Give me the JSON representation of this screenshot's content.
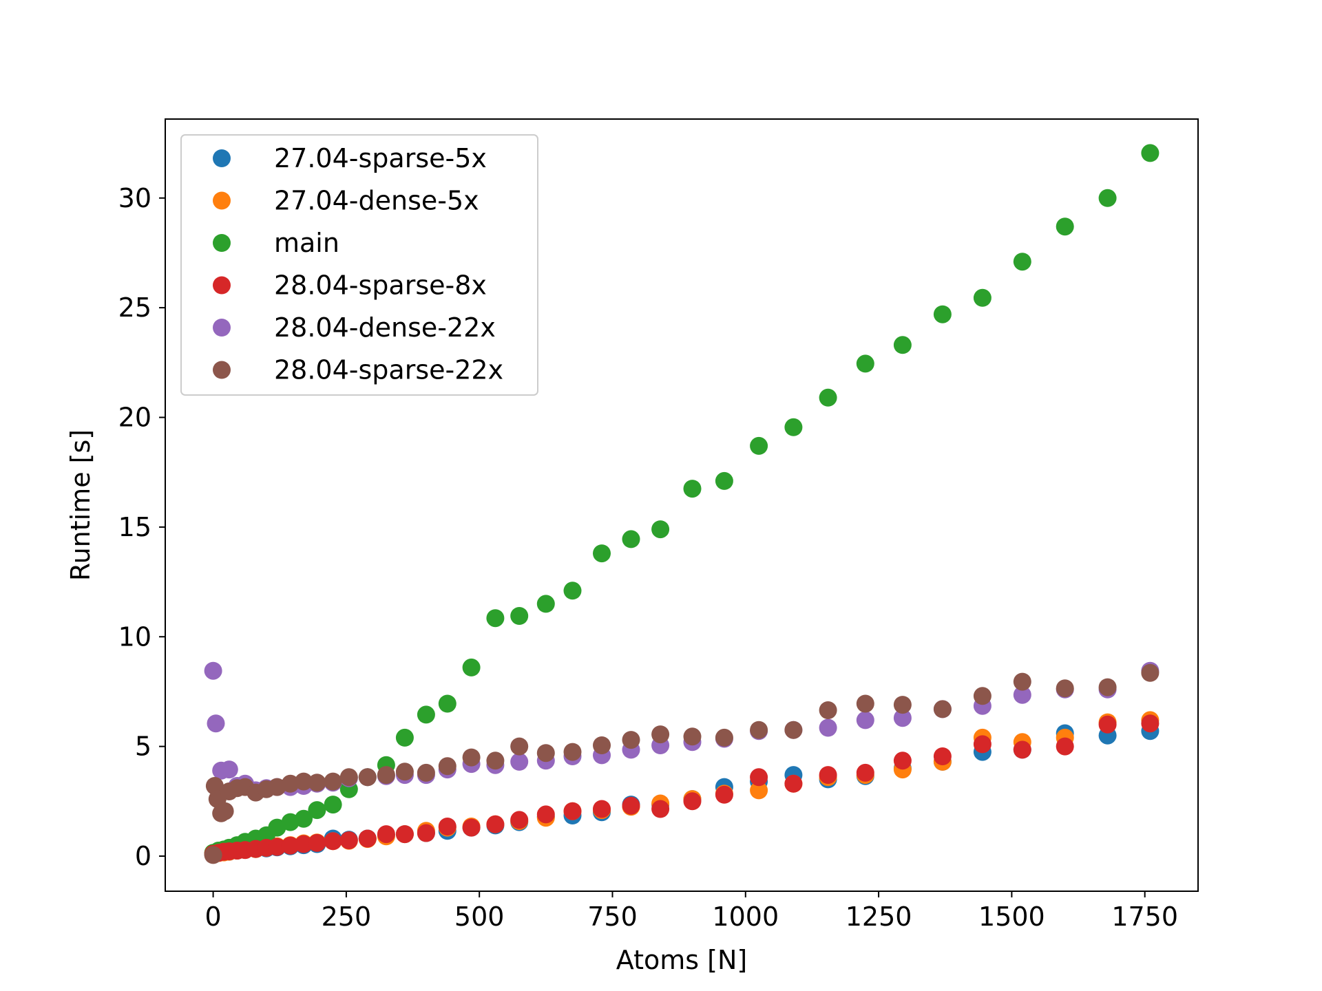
{
  "chart_data": {
    "type": "scatter",
    "xlabel": "Atoms [N]",
    "ylabel": "Runtime [s]",
    "xlim": [
      -90,
      1850
    ],
    "ylim": [
      -1.6,
      33.6
    ],
    "xticks": [
      0,
      250,
      500,
      750,
      1000,
      1250,
      1500,
      1750
    ],
    "yticks": [
      0,
      5,
      10,
      15,
      20,
      25,
      30
    ],
    "grid": false,
    "legend_position": "upper-left",
    "series": [
      {
        "name": "27.04-sparse-5x",
        "color": "#1f77b4",
        "points": [
          [
            0,
            0.1
          ],
          [
            10,
            0.15
          ],
          [
            20,
            0.18
          ],
          [
            30,
            0.2
          ],
          [
            45,
            0.25
          ],
          [
            60,
            0.28
          ],
          [
            80,
            0.32
          ],
          [
            100,
            0.35
          ],
          [
            120,
            0.4
          ],
          [
            145,
            0.45
          ],
          [
            170,
            0.5
          ],
          [
            195,
            0.55
          ],
          [
            225,
            0.8
          ],
          [
            255,
            0.75
          ],
          [
            290,
            0.8
          ],
          [
            325,
            0.95
          ],
          [
            360,
            1.0
          ],
          [
            400,
            1.05
          ],
          [
            440,
            1.15
          ],
          [
            485,
            1.3
          ],
          [
            530,
            1.4
          ],
          [
            575,
            1.55
          ],
          [
            625,
            1.8
          ],
          [
            675,
            1.85
          ],
          [
            730,
            2.0
          ],
          [
            785,
            2.35
          ],
          [
            840,
            2.35
          ],
          [
            900,
            2.6
          ],
          [
            960,
            3.15
          ],
          [
            1025,
            3.4
          ],
          [
            1090,
            3.7
          ],
          [
            1155,
            3.5
          ],
          [
            1225,
            3.65
          ],
          [
            1295,
            4.0
          ],
          [
            1370,
            4.3
          ],
          [
            1445,
            4.75
          ],
          [
            1520,
            4.85
          ],
          [
            1600,
            5.6
          ],
          [
            1680,
            5.5
          ],
          [
            1760,
            5.7
          ]
        ]
      },
      {
        "name": "27.04-dense-5x",
        "color": "#ff7f0e",
        "points": [
          [
            0,
            0.1
          ],
          [
            10,
            0.14
          ],
          [
            20,
            0.17
          ],
          [
            30,
            0.2
          ],
          [
            45,
            0.25
          ],
          [
            60,
            0.28
          ],
          [
            80,
            0.32
          ],
          [
            100,
            0.38
          ],
          [
            120,
            0.45
          ],
          [
            145,
            0.5
          ],
          [
            170,
            0.58
          ],
          [
            195,
            0.62
          ],
          [
            225,
            0.68
          ],
          [
            255,
            0.7
          ],
          [
            290,
            0.78
          ],
          [
            325,
            0.9
          ],
          [
            360,
            1.0
          ],
          [
            400,
            1.15
          ],
          [
            440,
            1.3
          ],
          [
            485,
            1.35
          ],
          [
            530,
            1.45
          ],
          [
            575,
            1.6
          ],
          [
            625,
            1.75
          ],
          [
            675,
            2.05
          ],
          [
            730,
            2.1
          ],
          [
            785,
            2.25
          ],
          [
            840,
            2.4
          ],
          [
            900,
            2.6
          ],
          [
            960,
            2.85
          ],
          [
            1025,
            3.0
          ],
          [
            1090,
            3.3
          ],
          [
            1155,
            3.6
          ],
          [
            1225,
            3.7
          ],
          [
            1295,
            3.95
          ],
          [
            1370,
            4.3
          ],
          [
            1445,
            5.4
          ],
          [
            1520,
            5.2
          ],
          [
            1600,
            5.4
          ],
          [
            1680,
            6.1
          ],
          [
            1760,
            6.2
          ]
        ]
      },
      {
        "name": "main",
        "color": "#2ca02c",
        "points": [
          [
            0,
            0.15
          ],
          [
            10,
            0.25
          ],
          [
            20,
            0.3
          ],
          [
            30,
            0.38
          ],
          [
            45,
            0.5
          ],
          [
            60,
            0.65
          ],
          [
            80,
            0.8
          ],
          [
            100,
            0.95
          ],
          [
            120,
            1.3
          ],
          [
            145,
            1.55
          ],
          [
            170,
            1.7
          ],
          [
            195,
            2.1
          ],
          [
            225,
            2.35
          ],
          [
            255,
            3.05
          ],
          [
            290,
            3.6
          ],
          [
            325,
            4.15
          ],
          [
            360,
            5.4
          ],
          [
            400,
            6.45
          ],
          [
            440,
            6.95
          ],
          [
            485,
            8.6
          ],
          [
            530,
            10.85
          ],
          [
            575,
            10.95
          ],
          [
            625,
            11.5
          ],
          [
            675,
            12.1
          ],
          [
            730,
            13.8
          ],
          [
            785,
            14.45
          ],
          [
            840,
            14.9
          ],
          [
            900,
            16.75
          ],
          [
            960,
            17.1
          ],
          [
            1025,
            18.7
          ],
          [
            1090,
            19.55
          ],
          [
            1155,
            20.9
          ],
          [
            1225,
            22.45
          ],
          [
            1295,
            23.3
          ],
          [
            1370,
            24.7
          ],
          [
            1445,
            25.45
          ],
          [
            1520,
            27.1
          ],
          [
            1600,
            28.7
          ],
          [
            1680,
            30.0
          ],
          [
            1760,
            32.05
          ]
        ]
      },
      {
        "name": "28.04-sparse-8x",
        "color": "#d62728",
        "points": [
          [
            0,
            0.1
          ],
          [
            10,
            0.15
          ],
          [
            20,
            0.2
          ],
          [
            30,
            0.22
          ],
          [
            45,
            0.25
          ],
          [
            60,
            0.28
          ],
          [
            80,
            0.33
          ],
          [
            100,
            0.38
          ],
          [
            120,
            0.42
          ],
          [
            145,
            0.48
          ],
          [
            170,
            0.55
          ],
          [
            195,
            0.6
          ],
          [
            225,
            0.68
          ],
          [
            255,
            0.72
          ],
          [
            290,
            0.8
          ],
          [
            325,
            1.0
          ],
          [
            360,
            1.0
          ],
          [
            400,
            1.05
          ],
          [
            440,
            1.35
          ],
          [
            485,
            1.3
          ],
          [
            530,
            1.45
          ],
          [
            575,
            1.65
          ],
          [
            625,
            1.9
          ],
          [
            675,
            2.05
          ],
          [
            730,
            2.15
          ],
          [
            785,
            2.3
          ],
          [
            840,
            2.15
          ],
          [
            900,
            2.5
          ],
          [
            960,
            2.8
          ],
          [
            1025,
            3.6
          ],
          [
            1090,
            3.3
          ],
          [
            1155,
            3.7
          ],
          [
            1225,
            3.8
          ],
          [
            1295,
            4.35
          ],
          [
            1370,
            4.55
          ],
          [
            1445,
            5.1
          ],
          [
            1520,
            4.85
          ],
          [
            1600,
            5.0
          ],
          [
            1680,
            6.0
          ],
          [
            1760,
            6.05
          ]
        ]
      },
      {
        "name": "28.04-dense-22x",
        "color": "#9467bd",
        "points": [
          [
            0,
            8.45
          ],
          [
            5,
            6.05
          ],
          [
            15,
            3.9
          ],
          [
            30,
            3.95
          ],
          [
            45,
            3.2
          ],
          [
            60,
            3.3
          ],
          [
            80,
            3.0
          ],
          [
            100,
            3.1
          ],
          [
            120,
            3.15
          ],
          [
            145,
            3.15
          ],
          [
            170,
            3.2
          ],
          [
            195,
            3.3
          ],
          [
            225,
            3.35
          ],
          [
            255,
            3.55
          ],
          [
            290,
            3.6
          ],
          [
            325,
            3.65
          ],
          [
            360,
            3.7
          ],
          [
            400,
            3.7
          ],
          [
            440,
            3.95
          ],
          [
            485,
            4.2
          ],
          [
            530,
            4.15
          ],
          [
            575,
            4.3
          ],
          [
            625,
            4.35
          ],
          [
            675,
            4.55
          ],
          [
            730,
            4.6
          ],
          [
            785,
            4.85
          ],
          [
            840,
            5.05
          ],
          [
            900,
            5.2
          ],
          [
            960,
            5.35
          ],
          [
            1025,
            5.7
          ],
          [
            1090,
            5.75
          ],
          [
            1155,
            5.85
          ],
          [
            1225,
            6.2
          ],
          [
            1295,
            6.3
          ],
          [
            1370,
            6.7
          ],
          [
            1445,
            6.85
          ],
          [
            1520,
            7.35
          ],
          [
            1600,
            7.6
          ],
          [
            1680,
            7.6
          ],
          [
            1760,
            8.45
          ]
        ]
      },
      {
        "name": "28.04-sparse-22x",
        "color": "#8c564b",
        "points": [
          [
            0,
            0.05
          ],
          [
            3,
            3.2
          ],
          [
            8,
            2.6
          ],
          [
            15,
            1.95
          ],
          [
            22,
            2.05
          ],
          [
            30,
            2.95
          ],
          [
            45,
            3.1
          ],
          [
            60,
            3.15
          ],
          [
            80,
            2.9
          ],
          [
            100,
            3.05
          ],
          [
            120,
            3.15
          ],
          [
            145,
            3.3
          ],
          [
            170,
            3.4
          ],
          [
            195,
            3.35
          ],
          [
            225,
            3.4
          ],
          [
            255,
            3.6
          ],
          [
            290,
            3.6
          ],
          [
            325,
            3.7
          ],
          [
            360,
            3.85
          ],
          [
            400,
            3.8
          ],
          [
            440,
            4.1
          ],
          [
            485,
            4.5
          ],
          [
            530,
            4.35
          ],
          [
            575,
            5.0
          ],
          [
            625,
            4.7
          ],
          [
            675,
            4.75
          ],
          [
            730,
            5.05
          ],
          [
            785,
            5.3
          ],
          [
            840,
            5.55
          ],
          [
            900,
            5.45
          ],
          [
            960,
            5.4
          ],
          [
            1025,
            5.75
          ],
          [
            1090,
            5.75
          ],
          [
            1155,
            6.65
          ],
          [
            1225,
            6.95
          ],
          [
            1295,
            6.9
          ],
          [
            1370,
            6.7
          ],
          [
            1445,
            7.3
          ],
          [
            1520,
            7.95
          ],
          [
            1600,
            7.65
          ],
          [
            1680,
            7.7
          ],
          [
            1760,
            8.35
          ]
        ]
      }
    ]
  }
}
